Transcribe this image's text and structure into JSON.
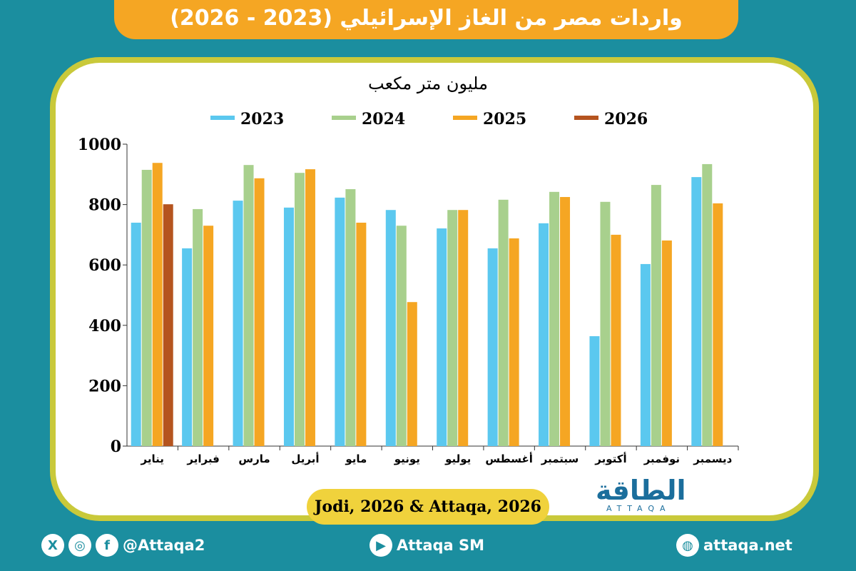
{
  "title": "واردات مصر من الغاز الإسرائيلي (2023 - 2026)",
  "footer": {
    "source": "Jodi, 2026 & Attaqa, 2026",
    "social": "@Attaqa2",
    "youtube": "Attaqa SM",
    "website": "attaqa.net",
    "logo": "الطاقة",
    "logo_sub": "ATTAQA"
  },
  "colors": {
    "2023": "#5bc8ef",
    "2024": "#a8d08d",
    "2025": "#f5a623",
    "2026": "#b5541f",
    "background": "#1b8e9f"
  },
  "chart_data": {
    "type": "bar",
    "ylabel": "مليون متر مكعب",
    "ylim": [
      0,
      1000
    ],
    "yticks": [
      0,
      200,
      400,
      600,
      800,
      1000
    ],
    "legend": "top",
    "categories": [
      "يناير",
      "فبراير",
      "مارس",
      "أبريل",
      "مايو",
      "يونيو",
      "يوليو",
      "أغسطس",
      "سبتمبر",
      "أكتوبر",
      "نوفمبر",
      "ديسمبر"
    ],
    "series": [
      {
        "name": "2023",
        "values": [
          740,
          655,
          813,
          790,
          823,
          782,
          721,
          655,
          738,
          364,
          603,
          891
        ]
      },
      {
        "name": "2024",
        "values": [
          915,
          785,
          931,
          905,
          851,
          730,
          782,
          816,
          842,
          809,
          865,
          934
        ]
      },
      {
        "name": "2025",
        "values": [
          938,
          730,
          887,
          917,
          740,
          477,
          782,
          688,
          825,
          700,
          681,
          804
        ]
      },
      {
        "name": "2026",
        "values": [
          801,
          null,
          null,
          null,
          null,
          null,
          null,
          null,
          null,
          null,
          null,
          null
        ]
      }
    ]
  }
}
